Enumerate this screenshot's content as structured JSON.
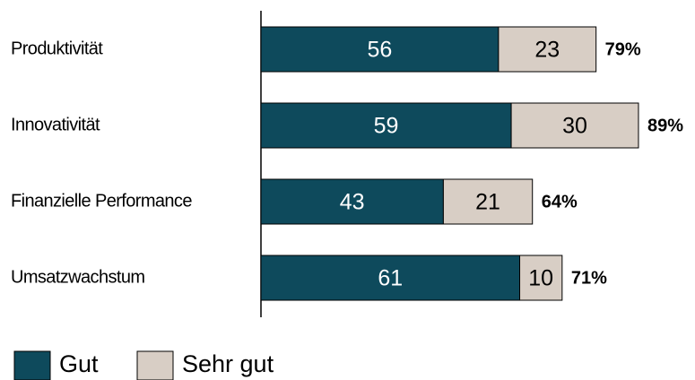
{
  "chart_data": {
    "type": "stacked-bar-horizontal",
    "categories": [
      "Produktivität",
      "Innovativität",
      "Finanzielle Performance",
      "Umsatzwachstum"
    ],
    "series": [
      {
        "name": "Gut",
        "color": "#0e4a5c",
        "values": [
          56,
          59,
          43,
          61
        ]
      },
      {
        "name": "Sehr gut",
        "color": "#d8cec5",
        "values": [
          23,
          30,
          21,
          10
        ]
      }
    ],
    "total_labels": [
      "79%",
      "89%",
      "64%",
      "71%"
    ],
    "xlim": [
      0,
      100
    ]
  }
}
